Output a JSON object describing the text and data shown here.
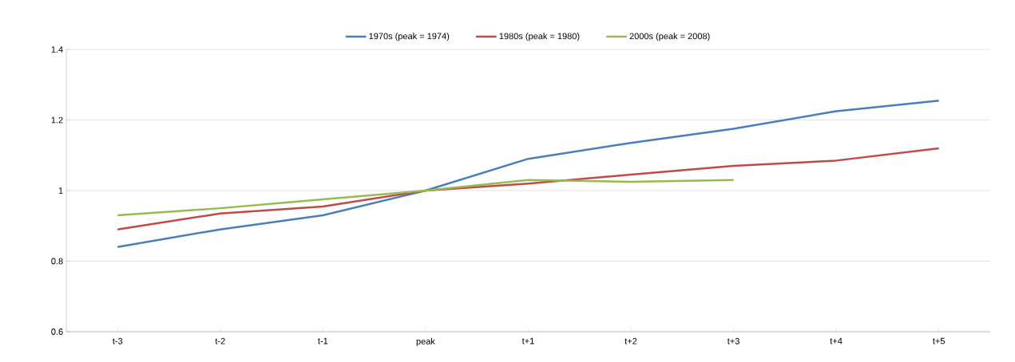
{
  "chart_data": {
    "type": "line",
    "categories": [
      "t-3",
      "t-2",
      "t-1",
      "peak",
      "t+1",
      "t+2",
      "t+3",
      "t+4",
      "t+5"
    ],
    "series": [
      {
        "name": "1970s (peak = 1974)",
        "color": "#4a7ebb",
        "values": [
          0.84,
          0.89,
          0.93,
          1.0,
          1.09,
          1.135,
          1.175,
          1.225,
          1.255
        ]
      },
      {
        "name": "1980s (peak = 1980)",
        "color": "#be4b48",
        "values": [
          0.89,
          0.935,
          0.955,
          1.0,
          1.02,
          1.045,
          1.07,
          1.085,
          1.12
        ]
      },
      {
        "name": "2000s (peak = 2008)",
        "color": "#98b954",
        "values": [
          0.93,
          0.95,
          0.975,
          1.0,
          1.03,
          1.025,
          1.03,
          null,
          null
        ]
      }
    ],
    "ylim": [
      0.6,
      1.4
    ],
    "yticks": [
      0.6,
      0.8,
      1,
      1.2,
      1.4
    ],
    "grid": "y",
    "legend": "top",
    "marker": "none",
    "line_style": "solid"
  }
}
